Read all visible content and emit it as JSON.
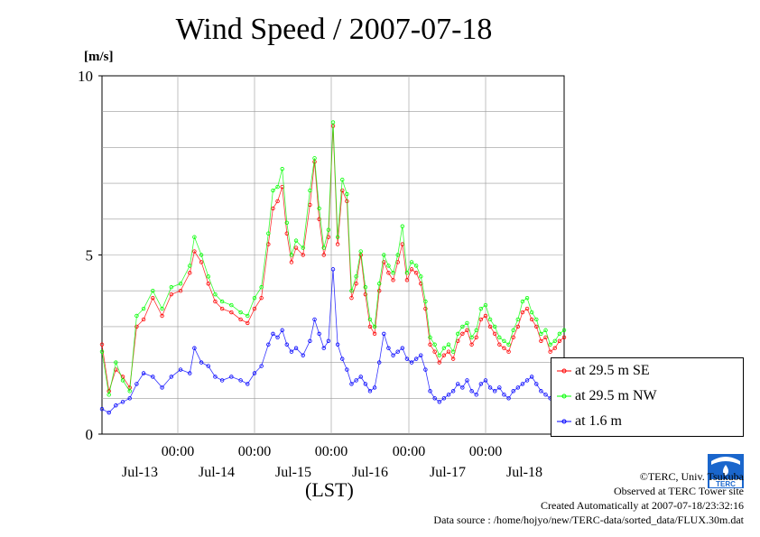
{
  "chart_data": {
    "type": "line",
    "title": "Wind Speed / 2007-07-18",
    "ylabel": "[m/s]",
    "xlabel": "(LST)",
    "ylim": [
      0,
      10
    ],
    "yticks": [
      0,
      5,
      10
    ],
    "grid": true,
    "legend_position": "bottom-right",
    "x_tick_top_labels": [
      "00:00",
      "00:00",
      "00:00",
      "00:00",
      "00:00"
    ],
    "x_tick_day_labels": [
      "Jul-13",
      "Jul-14",
      "Jul-15",
      "Jul-16",
      "Jul-17",
      "Jul-18"
    ],
    "series": [
      {
        "name": "at 29.5 m SE",
        "color": "#ff0000",
        "keypoints": [
          [
            0,
            2.5
          ],
          [
            3,
            1.2
          ],
          [
            6,
            1.8
          ],
          [
            9,
            1.6
          ],
          [
            12,
            1.3
          ],
          [
            15,
            3.0
          ],
          [
            18,
            3.2
          ],
          [
            22,
            3.8
          ],
          [
            26,
            3.3
          ],
          [
            30,
            3.9
          ],
          [
            34,
            4.0
          ],
          [
            38,
            4.5
          ],
          [
            40,
            5.1
          ],
          [
            43,
            4.8
          ],
          [
            46,
            4.2
          ],
          [
            49,
            3.7
          ],
          [
            52,
            3.5
          ],
          [
            56,
            3.4
          ],
          [
            60,
            3.2
          ],
          [
            63,
            3.1
          ],
          [
            66,
            3.5
          ],
          [
            69,
            3.8
          ],
          [
            72,
            5.3
          ],
          [
            74,
            6.3
          ],
          [
            76,
            6.5
          ],
          [
            78,
            6.9
          ],
          [
            80,
            5.6
          ],
          [
            82,
            4.8
          ],
          [
            84,
            5.2
          ],
          [
            87,
            5.0
          ],
          [
            90,
            6.4
          ],
          [
            92,
            7.6
          ],
          [
            94,
            6.0
          ],
          [
            96,
            5.0
          ],
          [
            98,
            5.5
          ],
          [
            100,
            8.6
          ],
          [
            102,
            5.3
          ],
          [
            104,
            6.8
          ],
          [
            106,
            6.5
          ],
          [
            108,
            3.8
          ],
          [
            110,
            4.2
          ],
          [
            112,
            5.0
          ],
          [
            114,
            3.9
          ],
          [
            116,
            3.0
          ],
          [
            118,
            2.8
          ],
          [
            120,
            4.0
          ],
          [
            122,
            4.8
          ],
          [
            124,
            4.5
          ],
          [
            126,
            4.3
          ],
          [
            128,
            4.8
          ],
          [
            130,
            5.3
          ],
          [
            132,
            4.3
          ],
          [
            134,
            4.6
          ],
          [
            136,
            4.5
          ],
          [
            138,
            4.2
          ],
          [
            140,
            3.5
          ],
          [
            142,
            2.5
          ],
          [
            144,
            2.3
          ],
          [
            146,
            2.0
          ],
          [
            148,
            2.2
          ],
          [
            150,
            2.3
          ],
          [
            152,
            2.1
          ],
          [
            154,
            2.6
          ],
          [
            156,
            2.8
          ],
          [
            158,
            2.9
          ],
          [
            160,
            2.5
          ],
          [
            162,
            2.7
          ],
          [
            164,
            3.2
          ],
          [
            166,
            3.3
          ],
          [
            168,
            3.0
          ],
          [
            170,
            2.8
          ],
          [
            172,
            2.5
          ],
          [
            174,
            2.4
          ],
          [
            176,
            2.3
          ],
          [
            178,
            2.7
          ],
          [
            180,
            3.0
          ],
          [
            182,
            3.4
          ],
          [
            184,
            3.5
          ],
          [
            186,
            3.2
          ],
          [
            188,
            3.0
          ],
          [
            190,
            2.6
          ],
          [
            192,
            2.7
          ],
          [
            194,
            2.3
          ],
          [
            196,
            2.4
          ],
          [
            198,
            2.6
          ],
          [
            200,
            2.7
          ]
        ]
      },
      {
        "name": "at 29.5 m NW",
        "color": "#00ff00",
        "keypoints": [
          [
            0,
            2.3
          ],
          [
            3,
            1.1
          ],
          [
            6,
            2.0
          ],
          [
            9,
            1.5
          ],
          [
            12,
            1.2
          ],
          [
            15,
            3.3
          ],
          [
            18,
            3.5
          ],
          [
            22,
            4.0
          ],
          [
            26,
            3.5
          ],
          [
            30,
            4.1
          ],
          [
            34,
            4.2
          ],
          [
            38,
            4.7
          ],
          [
            40,
            5.5
          ],
          [
            43,
            5.0
          ],
          [
            46,
            4.4
          ],
          [
            49,
            3.9
          ],
          [
            52,
            3.7
          ],
          [
            56,
            3.6
          ],
          [
            60,
            3.4
          ],
          [
            63,
            3.3
          ],
          [
            66,
            3.8
          ],
          [
            69,
            4.1
          ],
          [
            72,
            5.6
          ],
          [
            74,
            6.8
          ],
          [
            76,
            6.9
          ],
          [
            78,
            7.4
          ],
          [
            80,
            5.9
          ],
          [
            82,
            5.0
          ],
          [
            84,
            5.4
          ],
          [
            87,
            5.2
          ],
          [
            90,
            6.8
          ],
          [
            92,
            7.7
          ],
          [
            94,
            6.3
          ],
          [
            96,
            5.2
          ],
          [
            98,
            5.7
          ],
          [
            100,
            8.7
          ],
          [
            102,
            5.5
          ],
          [
            104,
            7.1
          ],
          [
            106,
            6.7
          ],
          [
            108,
            4.0
          ],
          [
            110,
            4.4
          ],
          [
            112,
            5.1
          ],
          [
            114,
            4.1
          ],
          [
            116,
            3.2
          ],
          [
            118,
            3.0
          ],
          [
            120,
            4.2
          ],
          [
            122,
            5.0
          ],
          [
            124,
            4.7
          ],
          [
            126,
            4.5
          ],
          [
            128,
            5.0
          ],
          [
            130,
            5.8
          ],
          [
            132,
            4.5
          ],
          [
            134,
            4.8
          ],
          [
            136,
            4.7
          ],
          [
            138,
            4.4
          ],
          [
            140,
            3.7
          ],
          [
            142,
            2.7
          ],
          [
            144,
            2.5
          ],
          [
            146,
            2.2
          ],
          [
            148,
            2.4
          ],
          [
            150,
            2.5
          ],
          [
            152,
            2.3
          ],
          [
            154,
            2.8
          ],
          [
            156,
            3.0
          ],
          [
            158,
            3.1
          ],
          [
            160,
            2.7
          ],
          [
            162,
            2.9
          ],
          [
            164,
            3.5
          ],
          [
            166,
            3.6
          ],
          [
            168,
            3.2
          ],
          [
            170,
            3.0
          ],
          [
            172,
            2.7
          ],
          [
            174,
            2.6
          ],
          [
            176,
            2.5
          ],
          [
            178,
            2.9
          ],
          [
            180,
            3.2
          ],
          [
            182,
            3.7
          ],
          [
            184,
            3.8
          ],
          [
            186,
            3.4
          ],
          [
            188,
            3.2
          ],
          [
            190,
            2.8
          ],
          [
            192,
            2.9
          ],
          [
            194,
            2.5
          ],
          [
            196,
            2.6
          ],
          [
            198,
            2.8
          ],
          [
            200,
            2.9
          ]
        ]
      },
      {
        "name": "at 1.6 m",
        "color": "#0000ff",
        "keypoints": [
          [
            0,
            0.7
          ],
          [
            3,
            0.6
          ],
          [
            6,
            0.8
          ],
          [
            9,
            0.9
          ],
          [
            12,
            1.0
          ],
          [
            15,
            1.4
          ],
          [
            18,
            1.7
          ],
          [
            22,
            1.6
          ],
          [
            26,
            1.3
          ],
          [
            30,
            1.6
          ],
          [
            34,
            1.8
          ],
          [
            38,
            1.7
          ],
          [
            40,
            2.4
          ],
          [
            43,
            2.0
          ],
          [
            46,
            1.9
          ],
          [
            49,
            1.6
          ],
          [
            52,
            1.5
          ],
          [
            56,
            1.6
          ],
          [
            60,
            1.5
          ],
          [
            63,
            1.4
          ],
          [
            66,
            1.7
          ],
          [
            69,
            1.9
          ],
          [
            72,
            2.5
          ],
          [
            74,
            2.8
          ],
          [
            76,
            2.7
          ],
          [
            78,
            2.9
          ],
          [
            80,
            2.5
          ],
          [
            82,
            2.3
          ],
          [
            84,
            2.4
          ],
          [
            87,
            2.2
          ],
          [
            90,
            2.6
          ],
          [
            92,
            3.2
          ],
          [
            94,
            2.8
          ],
          [
            96,
            2.4
          ],
          [
            98,
            2.6
          ],
          [
            100,
            4.6
          ],
          [
            102,
            2.5
          ],
          [
            104,
            2.1
          ],
          [
            106,
            1.8
          ],
          [
            108,
            1.4
          ],
          [
            110,
            1.5
          ],
          [
            112,
            1.6
          ],
          [
            114,
            1.4
          ],
          [
            116,
            1.2
          ],
          [
            118,
            1.3
          ],
          [
            120,
            2.0
          ],
          [
            122,
            2.8
          ],
          [
            124,
            2.4
          ],
          [
            126,
            2.2
          ],
          [
            128,
            2.3
          ],
          [
            130,
            2.4
          ],
          [
            132,
            2.1
          ],
          [
            134,
            2.0
          ],
          [
            136,
            2.1
          ],
          [
            138,
            2.2
          ],
          [
            140,
            1.8
          ],
          [
            142,
            1.2
          ],
          [
            144,
            1.0
          ],
          [
            146,
            0.9
          ],
          [
            148,
            1.0
          ],
          [
            150,
            1.1
          ],
          [
            152,
            1.2
          ],
          [
            154,
            1.4
          ],
          [
            156,
            1.3
          ],
          [
            158,
            1.5
          ],
          [
            160,
            1.2
          ],
          [
            162,
            1.1
          ],
          [
            164,
            1.4
          ],
          [
            166,
            1.5
          ],
          [
            168,
            1.3
          ],
          [
            170,
            1.2
          ],
          [
            172,
            1.3
          ],
          [
            174,
            1.1
          ],
          [
            176,
            1.0
          ],
          [
            178,
            1.2
          ],
          [
            180,
            1.3
          ],
          [
            182,
            1.4
          ],
          [
            184,
            1.5
          ],
          [
            186,
            1.6
          ],
          [
            188,
            1.4
          ],
          [
            190,
            1.2
          ],
          [
            192,
            1.1
          ],
          [
            194,
            1.0
          ],
          [
            196,
            1.1
          ],
          [
            198,
            1.3
          ],
          [
            200,
            1.2
          ]
        ]
      }
    ]
  },
  "legend": {
    "items": [
      "at 29.5 m SE",
      "at 29.5 m NW",
      "at 1.6 m"
    ]
  },
  "credits": {
    "copyright": "©TERC, Univ. Tsukuba",
    "observed": "Observed at TERC Tower site",
    "created": "Created Automatically at 2007-07-18/23:32:16",
    "source": "Data source : /home/hojyo/new/TERC-data/sorted_data/FLUX.30m.dat"
  },
  "logo": {
    "text": "TERC",
    "color": "#1a66cc"
  }
}
